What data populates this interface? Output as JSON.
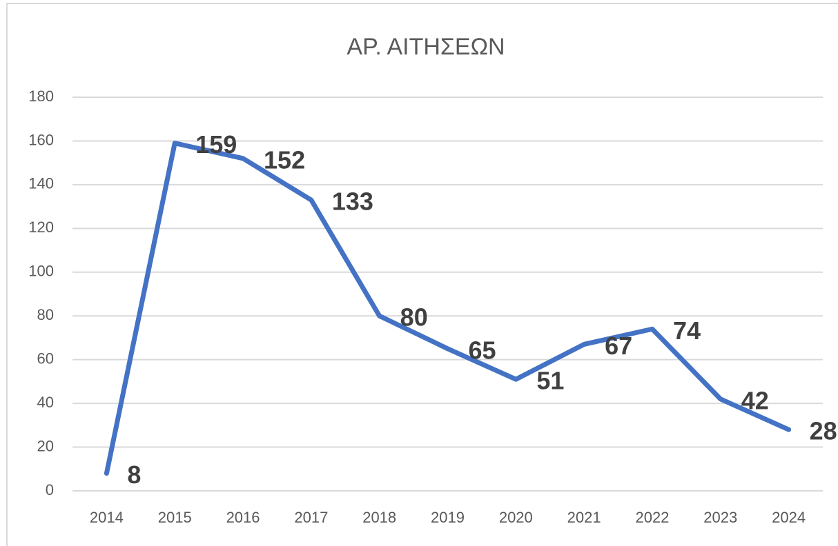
{
  "chart_data": {
    "type": "line",
    "title": "ΑΡ. ΑΙΤΗΣΕΩΝ",
    "categories": [
      "2014",
      "2015",
      "2016",
      "2017",
      "2018",
      "2019",
      "2020",
      "2021",
      "2022",
      "2023",
      "2024"
    ],
    "series": [
      {
        "name": "ΑΡ. ΑΙΤΗΣΕΩΝ",
        "color": "#4472c4",
        "values": [
          8,
          159,
          152,
          133,
          80,
          65,
          51,
          67,
          74,
          42,
          28
        ]
      }
    ],
    "ylim": [
      0,
      180
    ],
    "yticks": [
      0,
      20,
      40,
      60,
      80,
      100,
      120,
      140,
      160,
      180
    ],
    "grid": true,
    "data_labels": true
  }
}
